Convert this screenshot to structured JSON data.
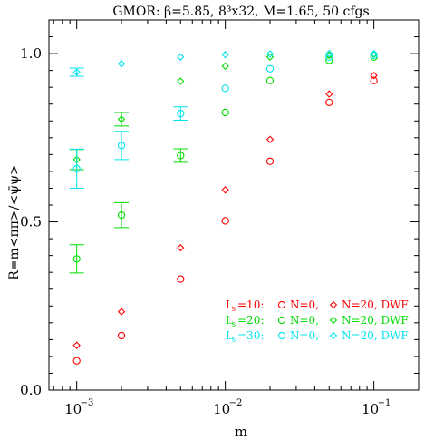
{
  "chart_data": {
    "type": "scatter",
    "title": "GMOR: β=5.85, 8³x32, M=1.65, 50 cfgs",
    "xlabel": "m",
    "ylabel": "R=m<ππ>/<ψ̄ψ>",
    "xscale": "log",
    "xlim": [
      0.00065,
      0.2
    ],
    "ylim": [
      0.0,
      1.1
    ],
    "y_ticks": [
      "0.0",
      "0.5",
      "1.0"
    ],
    "x_ticks": [
      {
        "base": "10",
        "exp": "−3",
        "value": 0.001
      },
      {
        "base": "10",
        "exp": "−2",
        "value": 0.01
      },
      {
        "base": "10",
        "exp": "−1",
        "value": 0.1
      }
    ],
    "legend_position": "bottom-right",
    "legend": [
      {
        "ls_label": "L",
        "ls_sub": "s",
        "ls_value": "=10:",
        "n0_label": "N=0,",
        "n20_label": "N=20, DWF",
        "color": "#ff0000"
      },
      {
        "ls_label": "L",
        "ls_sub": "s",
        "ls_value": "=20:",
        "n0_label": "N=0,",
        "n20_label": "N=20, DWF",
        "color": "#00dd00"
      },
      {
        "ls_label": "L",
        "ls_sub": "s",
        "ls_value": "=30:",
        "n0_label": "N=0,",
        "n20_label": "N=20, DWF",
        "color": "#00e5ee"
      }
    ],
    "series": [
      {
        "color": "#ff0000",
        "marker": "circle",
        "points": [
          [
            0.001,
            0.087,
            0.005
          ],
          [
            0.002,
            0.162,
            0.005
          ],
          [
            0.005,
            0.33,
            0.006
          ],
          [
            0.01,
            0.503,
            0.006
          ],
          [
            0.02,
            0.68,
            0.006
          ],
          [
            0.05,
            0.855,
            0.007
          ],
          [
            0.1,
            0.92,
            0.007
          ]
        ]
      },
      {
        "color": "#ff0000",
        "marker": "diamond",
        "points": [
          [
            0.001,
            0.133,
            0.004
          ],
          [
            0.002,
            0.233,
            0.006
          ],
          [
            0.005,
            0.423,
            0.01
          ],
          [
            0.01,
            0.595,
            0.006
          ],
          [
            0.02,
            0.745,
            0.006
          ],
          [
            0.05,
            0.88,
            0.005
          ],
          [
            0.1,
            0.935,
            0.005
          ]
        ]
      },
      {
        "color": "#00dd00",
        "marker": "circle",
        "points": [
          [
            0.001,
            0.39,
            0.042
          ],
          [
            0.002,
            0.52,
            0.037
          ],
          [
            0.005,
            0.697,
            0.02
          ],
          [
            0.01,
            0.825,
            0.01
          ],
          [
            0.02,
            0.92,
            0.01
          ],
          [
            0.05,
            0.98,
            0.01
          ],
          [
            0.1,
            0.99,
            0.005
          ]
        ]
      },
      {
        "color": "#00dd00",
        "marker": "diamond",
        "points": [
          [
            0.001,
            0.685,
            0.03
          ],
          [
            0.002,
            0.805,
            0.02
          ],
          [
            0.005,
            0.918,
            0.01
          ],
          [
            0.01,
            0.963,
            0.008
          ],
          [
            0.02,
            0.99,
            0.005
          ],
          [
            0.05,
            0.995,
            0.004
          ],
          [
            0.1,
            0.998,
            0.003
          ]
        ]
      },
      {
        "color": "#00e5ee",
        "marker": "circle",
        "points": [
          [
            0.001,
            0.658,
            0.058
          ],
          [
            0.002,
            0.727,
            0.042
          ],
          [
            0.005,
            0.822,
            0.02
          ],
          [
            0.01,
            0.897,
            0.01
          ],
          [
            0.02,
            0.955,
            0.008
          ],
          [
            0.05,
            0.99,
            0.005
          ],
          [
            0.1,
            0.995,
            0.004
          ]
        ]
      },
      {
        "color": "#00e5ee",
        "marker": "diamond",
        "points": [
          [
            0.001,
            0.945,
            0.012
          ],
          [
            0.002,
            0.97,
            0.006
          ],
          [
            0.005,
            0.99,
            0.004
          ],
          [
            0.01,
            0.997,
            0.003
          ],
          [
            0.02,
            0.999,
            0.002
          ],
          [
            0.05,
            1.0,
            0.002
          ],
          [
            0.1,
            1.0,
            0.002
          ]
        ]
      }
    ]
  }
}
